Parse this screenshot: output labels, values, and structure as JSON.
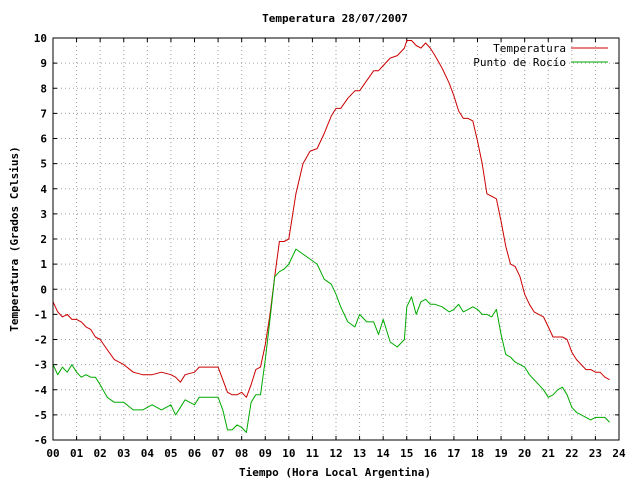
{
  "chart_data": {
    "type": "line",
    "title": "Temperatura 28/07/2007",
    "xlabel": "Tiempo (Hora Local Argentina)",
    "ylabel": "Temperatura (Grados Celsius)",
    "xlim": [
      0,
      24
    ],
    "ylim": [
      -6,
      10
    ],
    "xticks": [
      0,
      1,
      2,
      3,
      4,
      5,
      6,
      7,
      8,
      9,
      10,
      11,
      12,
      13,
      14,
      15,
      16,
      17,
      18,
      19,
      20,
      21,
      22,
      23,
      24
    ],
    "xtick_labels": [
      "00",
      "01",
      "02",
      "03",
      "04",
      "05",
      "06",
      "07",
      "08",
      "09",
      "10",
      "11",
      "12",
      "13",
      "14",
      "15",
      "16",
      "17",
      "18",
      "19",
      "20",
      "21",
      "22",
      "23",
      "24"
    ],
    "yticks": [
      -6,
      -5,
      -4,
      -3,
      -2,
      -1,
      0,
      1,
      2,
      3,
      4,
      5,
      6,
      7,
      8,
      9,
      10
    ],
    "grid": true,
    "legend_position": "top-right",
    "series": [
      {
        "name": "Temperatura",
        "color": "#cc0000",
        "x": [
          0.0,
          0.2,
          0.4,
          0.6,
          0.8,
          1.0,
          1.2,
          1.4,
          1.6,
          1.8,
          2.0,
          2.3,
          2.6,
          3.0,
          3.4,
          3.8,
          4.2,
          4.6,
          5.0,
          5.2,
          5.4,
          5.6,
          6.0,
          6.2,
          6.5,
          7.0,
          7.2,
          7.4,
          7.6,
          7.8,
          8.0,
          8.2,
          8.4,
          8.6,
          8.8,
          9.0,
          9.2,
          9.4,
          9.6,
          9.8,
          10.0,
          10.3,
          10.6,
          10.9,
          11.2,
          11.5,
          11.8,
          12.0,
          12.2,
          12.5,
          12.8,
          13.0,
          13.3,
          13.6,
          13.8,
          14.0,
          14.3,
          14.6,
          14.9,
          15.0,
          15.2,
          15.4,
          15.6,
          15.8,
          16.0,
          16.2,
          16.5,
          16.8,
          17.0,
          17.2,
          17.4,
          17.6,
          17.8,
          18.0,
          18.2,
          18.4,
          18.6,
          18.8,
          19.0,
          19.2,
          19.4,
          19.6,
          19.8,
          20.0,
          20.2,
          20.4,
          20.6,
          20.8,
          21.0,
          21.2,
          21.4,
          21.6,
          21.8,
          22.0,
          22.2,
          22.4,
          22.6,
          22.8,
          23.0,
          23.2,
          23.4,
          23.6
        ],
        "values": [
          -0.5,
          -0.9,
          -1.1,
          -1.0,
          -1.2,
          -1.2,
          -1.3,
          -1.5,
          -1.6,
          -1.9,
          -2.0,
          -2.4,
          -2.8,
          -3.0,
          -3.3,
          -3.4,
          -3.4,
          -3.3,
          -3.4,
          -3.5,
          -3.7,
          -3.4,
          -3.3,
          -3.1,
          -3.1,
          -3.1,
          -3.6,
          -4.1,
          -4.2,
          -4.2,
          -4.1,
          -4.3,
          -3.8,
          -3.2,
          -3.1,
          -2.2,
          -1.0,
          0.5,
          1.9,
          1.9,
          2.0,
          3.8,
          5.0,
          5.5,
          5.6,
          6.2,
          6.9,
          7.2,
          7.2,
          7.6,
          7.9,
          7.9,
          8.3,
          8.7,
          8.7,
          8.9,
          9.2,
          9.3,
          9.6,
          9.9,
          9.9,
          9.7,
          9.6,
          9.8,
          9.6,
          9.3,
          8.8,
          8.2,
          7.7,
          7.1,
          6.8,
          6.8,
          6.7,
          5.9,
          5.0,
          3.8,
          3.7,
          3.6,
          2.7,
          1.7,
          1.0,
          0.9,
          0.5,
          -0.2,
          -0.6,
          -0.9,
          -1.0,
          -1.1,
          -1.5,
          -1.9,
          -1.9,
          -1.9,
          -2.0,
          -2.5,
          -2.8,
          -3.0,
          -3.2,
          -3.2,
          -3.3,
          -3.3,
          -3.5,
          -3.6
        ]
      },
      {
        "name": "Punto de Rocío",
        "color": "#00aa00",
        "x": [
          0.0,
          0.2,
          0.4,
          0.6,
          0.8,
          1.0,
          1.2,
          1.4,
          1.6,
          1.8,
          2.0,
          2.3,
          2.6,
          3.0,
          3.4,
          3.8,
          4.2,
          4.6,
          5.0,
          5.2,
          5.4,
          5.6,
          6.0,
          6.2,
          6.5,
          7.0,
          7.2,
          7.4,
          7.6,
          7.8,
          8.0,
          8.2,
          8.4,
          8.6,
          8.8,
          9.0,
          9.2,
          9.4,
          9.6,
          9.8,
          10.0,
          10.3,
          10.6,
          10.9,
          11.2,
          11.5,
          11.8,
          12.0,
          12.2,
          12.5,
          12.8,
          13.0,
          13.3,
          13.6,
          13.8,
          14.0,
          14.3,
          14.6,
          14.9,
          15.0,
          15.2,
          15.4,
          15.6,
          15.8,
          16.0,
          16.2,
          16.5,
          16.8,
          17.0,
          17.2,
          17.4,
          17.6,
          17.8,
          18.0,
          18.2,
          18.4,
          18.6,
          18.8,
          19.0,
          19.2,
          19.4,
          19.6,
          19.8,
          20.0,
          20.2,
          20.4,
          20.6,
          20.8,
          21.0,
          21.2,
          21.4,
          21.6,
          21.8,
          22.0,
          22.2,
          22.4,
          22.6,
          22.8,
          23.0,
          23.2,
          23.4,
          23.6
        ],
        "values": [
          -3.0,
          -3.4,
          -3.1,
          -3.3,
          -3.0,
          -3.3,
          -3.5,
          -3.4,
          -3.5,
          -3.5,
          -3.8,
          -4.3,
          -4.5,
          -4.5,
          -4.8,
          -4.8,
          -4.6,
          -4.8,
          -4.6,
          -5.0,
          -4.7,
          -4.4,
          -4.6,
          -4.3,
          -4.3,
          -4.3,
          -4.8,
          -5.6,
          -5.6,
          -5.4,
          -5.5,
          -5.7,
          -4.5,
          -4.2,
          -4.2,
          -2.8,
          -1.2,
          0.5,
          0.7,
          0.8,
          1.0,
          1.6,
          1.4,
          1.2,
          1.0,
          0.4,
          0.2,
          -0.2,
          -0.7,
          -1.3,
          -1.5,
          -1.0,
          -1.3,
          -1.3,
          -1.8,
          -1.2,
          -2.1,
          -2.3,
          -2.0,
          -0.7,
          -0.3,
          -1.0,
          -0.5,
          -0.4,
          -0.6,
          -0.6,
          -0.7,
          -0.9,
          -0.8,
          -0.6,
          -0.9,
          -0.8,
          -0.7,
          -0.8,
          -1.0,
          -1.0,
          -1.1,
          -0.8,
          -1.8,
          -2.6,
          -2.7,
          -2.9,
          -3.0,
          -3.1,
          -3.4,
          -3.6,
          -3.8,
          -4.0,
          -4.3,
          -4.2,
          -4.0,
          -3.9,
          -4.2,
          -4.7,
          -4.9,
          -5.0,
          -5.1,
          -5.2,
          -5.1,
          -5.1,
          -5.1,
          -5.3
        ]
      }
    ]
  }
}
